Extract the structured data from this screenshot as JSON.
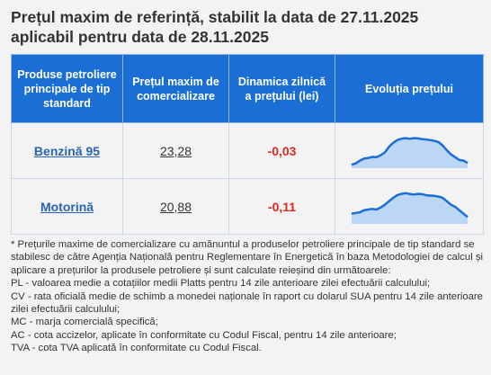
{
  "header": {
    "title_line1": "Prețul maxim de referință, stabilit la data de 27.11.2025",
    "title_line2": "aplicabil pentru data de 28.11.2025"
  },
  "table": {
    "columns": [
      "Produse petroliere principale de tip standard",
      "Prețul maxim de comercializare",
      "Dinamica zilnică a prețului (lei)",
      "Evoluția prețului"
    ],
    "rows": [
      {
        "product": "Benzină 95",
        "price": "23,28",
        "change": "-0,03",
        "trend": [
          0.1,
          0.14,
          0.22,
          0.28,
          0.3,
          0.33,
          0.32,
          0.38,
          0.46,
          0.62,
          0.74,
          0.82,
          0.86,
          0.88,
          0.86,
          0.88,
          0.87,
          0.85,
          0.84,
          0.82,
          0.8,
          0.76,
          0.66,
          0.52,
          0.4,
          0.32,
          0.24,
          0.22,
          0.15
        ]
      },
      {
        "product": "Motorină",
        "price": "20,88",
        "change": "-0,11",
        "trend": [
          0.3,
          0.32,
          0.34,
          0.4,
          0.42,
          0.44,
          0.42,
          0.48,
          0.56,
          0.66,
          0.76,
          0.84,
          0.88,
          0.9,
          0.88,
          0.86,
          0.88,
          0.87,
          0.84,
          0.83,
          0.82,
          0.8,
          0.76,
          0.66,
          0.56,
          0.5,
          0.4,
          0.3,
          0.2
        ]
      }
    ]
  },
  "colors": {
    "header_bg": "#1b6fd4",
    "link": "#2a64b7",
    "negative": "#e0281c",
    "spark_line": "#1b6fd4",
    "spark_fill": "#bcd6f5"
  },
  "notes": [
    "* Prețurile maxime de comercializare cu amănuntul a produselor petroliere principale de tip standard se stabilesc de către Agenția Națională pentru Reglementare în Energetică în baza Metodologiei de calcul și aplicare a prețurilor la produsele petroliere și sunt calculate reieșind din următoarele:",
    "PL - valoarea medie a cotațiilor medii Platts pentru 14 zile anterioare zilei efectuării calculului;",
    "CV - rata oficială medie de schimb a monedei naționale în raport cu dolarul SUA pentru 14 zile anterioare zilei efectuării calculului;",
    "MC - marja comercială specifică;",
    "AC - cota accizelor, aplicate în conformitate cu Codul Fiscal, pentru 14 zile anterioare;",
    "TVA - cota TVA aplicată în conformitate cu Codul Fiscal."
  ]
}
